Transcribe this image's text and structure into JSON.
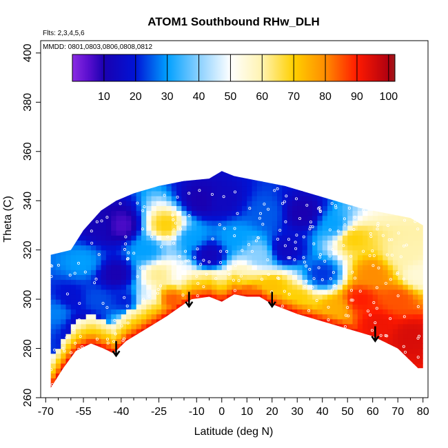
{
  "chart_data": {
    "type": "heatmap",
    "title": "ATOM1 Southbound RHw_DLH",
    "annotations": [
      "Flts: 2,3,4,5,6",
      "MMDD: 0801,0803,0806,0808,0812"
    ],
    "xlabel": "Latitude (deg N)",
    "ylabel": "Theta (C)",
    "xlim": [
      -72,
      82
    ],
    "ylim": [
      260,
      405
    ],
    "x_ticks": [
      -70,
      -55,
      -40,
      -25,
      -10,
      0,
      10,
      20,
      30,
      40,
      50,
      60,
      70,
      80
    ],
    "x_tick_labels": [
      "-70",
      "-55",
      "-40",
      "-25",
      "-10",
      "0",
      "10",
      "20",
      "30",
      "40",
      "50",
      "60",
      "70",
      "80"
    ],
    "x_minor_ticks": [
      -65,
      -60,
      -50,
      -45,
      -35,
      -30,
      -20,
      -15,
      -5,
      5,
      15,
      25,
      35,
      45,
      55,
      65,
      75
    ],
    "y_ticks": [
      260,
      280,
      300,
      320,
      340,
      360,
      380,
      400
    ],
    "y_tick_labels": [
      "260",
      "280",
      "300",
      "320",
      "340",
      "360",
      "380",
      "400"
    ],
    "colorbar": {
      "range": [
        0,
        102
      ],
      "ticks": [
        10,
        20,
        30,
        40,
        50,
        60,
        70,
        80,
        90,
        100
      ],
      "tick_labels": [
        "10",
        "20",
        "30",
        "40",
        "50",
        "60",
        "70",
        "80",
        "90",
        "100"
      ],
      "stops": [
        {
          "v": 0,
          "c": "#8a2be2"
        },
        {
          "v": 5,
          "c": "#5a0fcf"
        },
        {
          "v": 10,
          "c": "#1a00b0"
        },
        {
          "v": 20,
          "c": "#0014d6"
        },
        {
          "v": 30,
          "c": "#00a0ff"
        },
        {
          "v": 40,
          "c": "#8ad0ff"
        },
        {
          "v": 50,
          "c": "#ffffff"
        },
        {
          "v": 60,
          "c": "#fff3b0"
        },
        {
          "v": 70,
          "c": "#ffd000"
        },
        {
          "v": 80,
          "c": "#ff8c00"
        },
        {
          "v": 90,
          "c": "#ff1a00"
        },
        {
          "v": 100,
          "c": "#b00010"
        },
        {
          "v": 102,
          "c": "#9e1b1b"
        }
      ]
    },
    "coverage": {
      "top_lat": [
        -68,
        -60,
        -55,
        -48,
        -42,
        -35,
        -25,
        -15,
        -5,
        0,
        5,
        15,
        25,
        35,
        45,
        55,
        65,
        75,
        80
      ],
      "top_theta": [
        318,
        320,
        328,
        336,
        340,
        343,
        346,
        348,
        349,
        352,
        350,
        348,
        346,
        343,
        340,
        337,
        335,
        333,
        330
      ],
      "bottom_lat": [
        -68,
        -63,
        -58,
        -52,
        -47,
        -43,
        -38,
        -30,
        -22,
        -15,
        -12,
        -5,
        0,
        5,
        10,
        15,
        20,
        30,
        40,
        50,
        60,
        70,
        78,
        80
      ],
      "bottom_theta": [
        264,
        272,
        279,
        282,
        280,
        278,
        283,
        288,
        293,
        298,
        300,
        301,
        299,
        302,
        301,
        301,
        298,
        294,
        291,
        288,
        285,
        280,
        272,
        272
      ]
    },
    "field_anchors": [
      {
        "lat": -65,
        "theta": 295,
        "value": 28
      },
      {
        "lat": -60,
        "theta": 300,
        "value": 18
      },
      {
        "lat": -55,
        "theta": 290,
        "value": 14
      },
      {
        "lat": -50,
        "theta": 300,
        "value": 24
      },
      {
        "lat": -55,
        "theta": 315,
        "value": 30
      },
      {
        "lat": -48,
        "theta": 330,
        "value": 12
      },
      {
        "lat": -40,
        "theta": 330,
        "value": 6
      },
      {
        "lat": -42,
        "theta": 310,
        "value": 10
      },
      {
        "lat": -38,
        "theta": 300,
        "value": 20
      },
      {
        "lat": -35,
        "theta": 288,
        "value": 55
      },
      {
        "lat": -30,
        "theta": 300,
        "value": 48
      },
      {
        "lat": -30,
        "theta": 320,
        "value": 30
      },
      {
        "lat": -25,
        "theta": 310,
        "value": 62
      },
      {
        "lat": -22,
        "theta": 330,
        "value": 70
      },
      {
        "lat": -20,
        "theta": 300,
        "value": 85
      },
      {
        "lat": -15,
        "theta": 310,
        "value": 50
      },
      {
        "lat": -12,
        "theta": 325,
        "value": 30
      },
      {
        "lat": -8,
        "theta": 340,
        "value": 10
      },
      {
        "lat": -5,
        "theta": 318,
        "value": 12
      },
      {
        "lat": -3,
        "theta": 305,
        "value": 60
      },
      {
        "lat": 0,
        "theta": 340,
        "value": 14
      },
      {
        "lat": 5,
        "theta": 325,
        "value": 30
      },
      {
        "lat": 8,
        "theta": 310,
        "value": 58
      },
      {
        "lat": 10,
        "theta": 303,
        "value": 85
      },
      {
        "lat": 15,
        "theta": 318,
        "value": 40
      },
      {
        "lat": 18,
        "theta": 335,
        "value": 25
      },
      {
        "lat": 20,
        "theta": 305,
        "value": 72
      },
      {
        "lat": 25,
        "theta": 320,
        "value": 14
      },
      {
        "lat": 30,
        "theta": 300,
        "value": 70
      },
      {
        "lat": 32,
        "theta": 335,
        "value": 10
      },
      {
        "lat": 40,
        "theta": 310,
        "value": 22
      },
      {
        "lat": 45,
        "theta": 296,
        "value": 75
      },
      {
        "lat": 45,
        "theta": 330,
        "value": 30
      },
      {
        "lat": 52,
        "theta": 325,
        "value": 70
      },
      {
        "lat": 55,
        "theta": 300,
        "value": 90
      },
      {
        "lat": 60,
        "theta": 310,
        "value": 80
      },
      {
        "lat": 62,
        "theta": 290,
        "value": 92
      },
      {
        "lat": 70,
        "theta": 300,
        "value": 85
      },
      {
        "lat": 72,
        "theta": 318,
        "value": 60
      },
      {
        "lat": 75,
        "theta": 285,
        "value": 95
      },
      {
        "lat": 78,
        "theta": 310,
        "value": 55
      }
    ],
    "arrows": [
      {
        "lat": -42,
        "theta": 283,
        "length": 6
      },
      {
        "lat": -13,
        "theta": 303,
        "length": 6
      },
      {
        "lat": 20,
        "theta": 303,
        "length": 6
      },
      {
        "lat": 61,
        "theta": 289,
        "length": 6
      }
    ],
    "grid": false
  }
}
